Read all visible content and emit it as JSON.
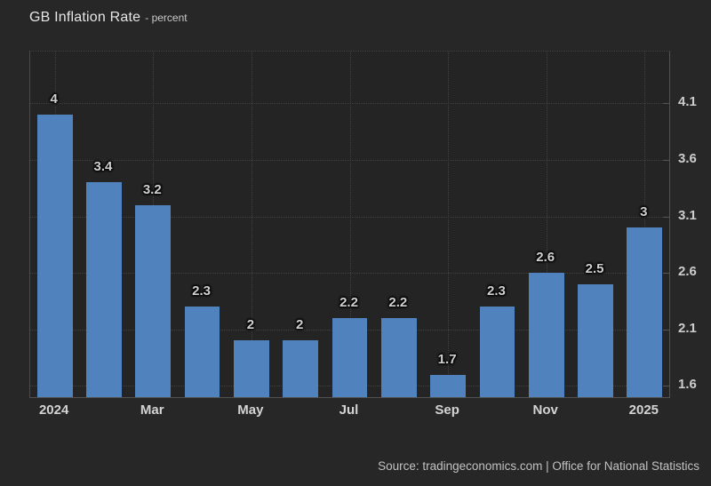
{
  "header": {
    "title": "GB Inflation Rate",
    "subtitle": "- percent"
  },
  "footer": {
    "source": "Source: tradingeconomics.com | Office for National Statistics"
  },
  "colors": {
    "bar": "#5082be",
    "page_background": "#272727",
    "plot_background": "#242424",
    "gridline": "#404040",
    "axis_line": "#515151",
    "axis_label": "#cdcdcd",
    "data_label": "#d0d0d0"
  },
  "chart_data": {
    "type": "bar",
    "title": "GB Inflation Rate",
    "subtitle": "percent",
    "categories": [
      "2024",
      "",
      "Mar",
      "",
      "May",
      "",
      "Jul",
      "",
      "Sep",
      "",
      "Nov",
      "",
      "2025"
    ],
    "values": [
      4,
      3.4,
      3.2,
      2.3,
      2,
      2,
      2.2,
      2.2,
      1.7,
      2.3,
      2.6,
      2.5,
      3
    ],
    "bar_labels": [
      "4",
      "3.4",
      "3.2",
      "2.3",
      "2",
      "2",
      "2.2",
      "2.2",
      "1.7",
      "2.3",
      "2.6",
      "2.5",
      "3"
    ],
    "y_ticks": [
      "4.1",
      "3.6",
      "3.1",
      "2.6",
      "2.1",
      "1.6"
    ],
    "ylim": [
      1.5,
      4.56
    ],
    "xlabel": "",
    "ylabel": "",
    "y_axis_position": "right",
    "grid": "dotted",
    "legend": "none"
  }
}
